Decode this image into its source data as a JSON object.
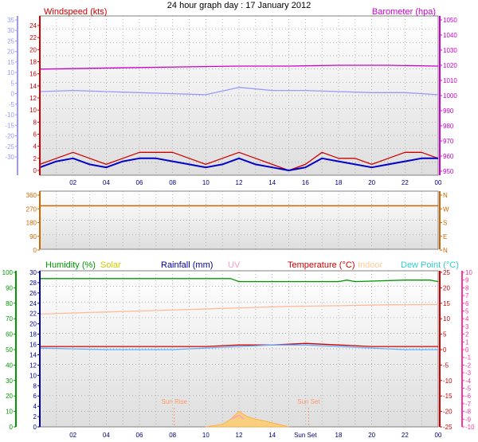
{
  "chart_data": [
    {
      "type": "line",
      "title": "24 hour graph day : 17 January 2012",
      "x_ticks": [
        "02",
        "04",
        "06",
        "08",
        "10",
        "12",
        "14",
        "16",
        "18",
        "20",
        "22",
        "00"
      ],
      "x_range_hours": [
        0,
        24
      ],
      "grid": true,
      "legend": "top",
      "left_axis": {
        "label": "Windspeed (kts)",
        "color": "#cc0000",
        "range": [
          0,
          25
        ],
        "ticks": [
          "0",
          "2",
          "4",
          "6",
          "8",
          "10",
          "12",
          "14",
          "16",
          "18",
          "20",
          "22",
          "24"
        ]
      },
      "outer_left_axis": {
        "label": "",
        "color": "#9999ff",
        "range": [
          -35,
          35
        ],
        "ticks": [
          "-30",
          "-25",
          "-20",
          "-15",
          "-10",
          "-5",
          "0",
          "5",
          "10",
          "15",
          "20",
          "25",
          "30",
          "35"
        ]
      },
      "right_axis": {
        "label": "Barometer (hpa)",
        "color": "#cc00cc",
        "range": [
          945,
          1052
        ],
        "ticks": [
          "950",
          "960",
          "970",
          "980",
          "990",
          "1000",
          "1010",
          "1020",
          "1030",
          "1040",
          "1050"
        ]
      },
      "series": [
        {
          "name": "Barometer (hpa)",
          "color": "#cc00cc",
          "axis": "right",
          "x": [
            0,
            3,
            6,
            9,
            12,
            15,
            18,
            21,
            24
          ],
          "values": [
            1017.5,
            1018,
            1018.5,
            1019,
            1019.5,
            1019.5,
            1020,
            1020,
            1019.5
          ]
        },
        {
          "name": "",
          "color": "#9999ff",
          "axis": "outer_left",
          "x": [
            0,
            2,
            4,
            6,
            8,
            10,
            12,
            14,
            16,
            18,
            20,
            22,
            24
          ],
          "values": [
            1,
            1.5,
            1,
            0.5,
            0,
            -0.5,
            3,
            1.5,
            1.5,
            1,
            0.5,
            0.5,
            -0.5
          ]
        },
        {
          "name": "Windspeed (kts)",
          "color": "#cc0000",
          "axis": "left",
          "x": [
            0,
            1,
            2,
            3,
            4,
            5,
            6,
            7,
            8,
            9,
            10,
            11,
            12,
            13,
            14,
            15,
            16,
            17,
            18,
            19,
            20,
            21,
            22,
            23,
            24
          ],
          "values": [
            1,
            2,
            3,
            2,
            1,
            2,
            3,
            3,
            3,
            2,
            1,
            2,
            3,
            2,
            1,
            0,
            1,
            3,
            2,
            2,
            1,
            2,
            3,
            3,
            2
          ]
        },
        {
          "name": "Windspeed",
          "color": "#0000cc",
          "axis": "left",
          "x": [
            0,
            1,
            2,
            3,
            4,
            5,
            6,
            7,
            8,
            9,
            10,
            11,
            12,
            13,
            14,
            15,
            16,
            17,
            18,
            19,
            20,
            21,
            22,
            23,
            24
          ],
          "values": [
            0.5,
            1.5,
            2,
            1,
            0.5,
            1.5,
            2,
            2,
            1.5,
            1,
            0.5,
            1,
            2,
            1,
            0.5,
            0,
            0.5,
            2,
            1.5,
            1,
            0.5,
            1,
            1.5,
            2,
            2
          ]
        }
      ]
    },
    {
      "type": "line",
      "x_ticks": [
        "02",
        "04",
        "06",
        "08",
        "10",
        "12",
        "14",
        "16",
        "18",
        "20",
        "22",
        "00"
      ],
      "left_axis": {
        "label": "",
        "color": "#cc6600",
        "range": [
          0,
          360
        ],
        "ticks": [
          "0",
          "90",
          "180",
          "270",
          "360"
        ]
      },
      "right_axis": {
        "label": "",
        "color": "#cc6600",
        "range": [
          0,
          360
        ],
        "ticks": [
          "N",
          "E",
          "S",
          "W",
          "N"
        ]
      },
      "series": [
        {
          "name": "Wind direction",
          "color": "#cc6600",
          "x": [
            0,
            24
          ],
          "values": [
            290,
            290
          ]
        }
      ]
    },
    {
      "type": "line",
      "x_ticks": [
        "02",
        "04",
        "06",
        "08",
        "10",
        "12",
        "14",
        "Sun Set",
        "18",
        "20",
        "22",
        "00"
      ],
      "legend": "top",
      "legend_items": [
        {
          "label": "Humidity (%)",
          "color": "#009900"
        },
        {
          "label": "Solar",
          "color": "#cccc00"
        },
        {
          "label": "Rainfall (mm)",
          "color": "#000099"
        },
        {
          "label": "UV",
          "color": "#ff99cc"
        },
        {
          "label": "Temperature (°C)",
          "color": "#cc0000"
        },
        {
          "label": "Indoor",
          "color": "#ffcc99"
        },
        {
          "label": "Dew Point (°C)",
          "color": "#33cccc"
        }
      ],
      "axes": {
        "humidity": {
          "color": "#009900",
          "range": [
            0,
            100
          ],
          "ticks": [
            "0",
            "10",
            "20",
            "30",
            "40",
            "50",
            "60",
            "70",
            "80",
            "90",
            "100"
          ]
        },
        "rainfall": {
          "color": "#000099",
          "range": [
            0,
            30
          ],
          "ticks": [
            "0",
            "2",
            "4",
            "6",
            "8",
            "10",
            "12",
            "14",
            "16",
            "18",
            "20",
            "22",
            "24",
            "26",
            "28",
            "30"
          ]
        },
        "temperature": {
          "color": "#cc0000",
          "range": [
            -25,
            25
          ],
          "ticks": [
            "-25",
            "-20",
            "-15",
            "-10",
            "-5",
            "0",
            "5",
            "10",
            "15",
            "20",
            "25"
          ]
        },
        "uv": {
          "color": "#ff3399",
          "range": [
            -10,
            10
          ],
          "ticks": [
            "-10",
            "-9",
            "-8",
            "-7",
            "-6",
            "-5",
            "-4",
            "-3",
            "-2",
            "-1",
            "0",
            "1",
            "2",
            "3",
            "4",
            "5",
            "6",
            "7",
            "8",
            "9",
            "10"
          ]
        }
      },
      "annotations": [
        {
          "label": "Sun Rise",
          "x_hour": 8.1
        },
        {
          "label": "Sun Set",
          "x_hour": 16.2
        }
      ],
      "series": [
        {
          "name": "Humidity (%)",
          "color": "#009900",
          "axis": "humidity",
          "x": [
            0,
            4,
            8,
            11.5,
            12,
            15,
            18,
            18.5,
            19,
            22,
            23.5,
            24
          ],
          "values": [
            96,
            96,
            96,
            96,
            94,
            94,
            94,
            95,
            94,
            95,
            95,
            94
          ]
        },
        {
          "name": "Indoor",
          "color": "#ffbb99",
          "axis": "temperature",
          "x": [
            0,
            3,
            6,
            9,
            12,
            15,
            18,
            21,
            24
          ],
          "values": [
            11.5,
            12,
            12.5,
            13,
            13.5,
            14,
            14.2,
            14.5,
            14.6
          ]
        },
        {
          "name": "Temperature (°C)",
          "color": "#cc0000",
          "axis": "temperature",
          "x": [
            0,
            4,
            8,
            10,
            12,
            14,
            16,
            18,
            20,
            22,
            24
          ],
          "values": [
            1,
            1,
            1,
            1,
            1.5,
            1.5,
            2,
            1.5,
            1,
            1,
            1
          ]
        },
        {
          "name": "Dew Point (°C)",
          "color": "#66aaff",
          "axis": "temperature",
          "x": [
            0,
            4,
            8,
            10,
            12,
            14,
            16,
            18,
            20,
            22,
            24
          ],
          "values": [
            0.5,
            0,
            0,
            0.5,
            1,
            1.5,
            1.5,
            1,
            0.5,
            0,
            0
          ]
        },
        {
          "name": "Solar",
          "color": "#ffcc66",
          "axis": "rainfall",
          "x": [
            10,
            11,
            11.5,
            12,
            12.5,
            13,
            14,
            15
          ],
          "values": [
            0,
            0.5,
            1.5,
            3,
            2,
            1.5,
            0.8,
            0
          ]
        },
        {
          "name": "UV",
          "color": "#ff99cc",
          "axis": "uv",
          "x": [
            11.5,
            12,
            12.3
          ],
          "values": [
            -9,
            -8.5,
            -9
          ]
        }
      ]
    }
  ]
}
